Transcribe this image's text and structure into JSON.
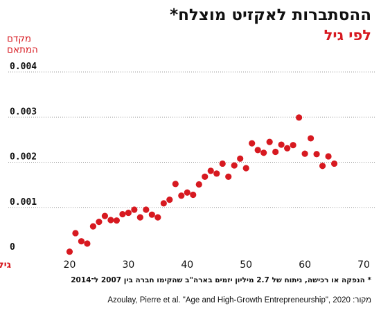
{
  "header": {
    "title": "ההסתברות לאקזיט מוצלח*",
    "subtitle": "לפי גיל"
  },
  "footer": {
    "note": "* הנפקה או רכישה, ניתוח של 2.7 מיליון יזמים בארה\"ב שהקימו חברה בין 2007 ל־2014",
    "source": "מקור: Azoulay, Pierre et al. \"Age and High-Growth Entrepreneurship\", 2020"
  },
  "chart_data": {
    "type": "scatter",
    "ylabel_lines": [
      "מקדם",
      "המתאם"
    ],
    "xlabel": "גיל",
    "xlim": [
      15,
      72
    ],
    "ylim": [
      0,
      0.004
    ],
    "xticks": [
      20,
      30,
      40,
      50,
      60,
      70
    ],
    "yticks": [
      0,
      0.001,
      0.002,
      0.003,
      0.004
    ],
    "ytick_labels": [
      "0",
      "0.001",
      "0.002",
      "0.003",
      "0.004"
    ],
    "grid": "horizontal dotted",
    "colors": {
      "points": "#d71920",
      "text": "#111111",
      "accent": "#d71920",
      "grid": "#999999"
    },
    "points": [
      [
        20,
        2e-05
      ],
      [
        21,
        0.00043
      ],
      [
        22,
        0.00025
      ],
      [
        23,
        0.0002
      ],
      [
        24,
        0.00058
      ],
      [
        25,
        0.00068
      ],
      [
        26,
        0.00081
      ],
      [
        27,
        0.00072
      ],
      [
        28,
        0.00071
      ],
      [
        29,
        0.00085
      ],
      [
        30,
        0.00088
      ],
      [
        31,
        0.00095
      ],
      [
        32,
        0.00078
      ],
      [
        33,
        0.00095
      ],
      [
        34,
        0.00084
      ],
      [
        35,
        0.00078
      ],
      [
        36,
        0.00109
      ],
      [
        37,
        0.00117
      ],
      [
        38,
        0.00152
      ],
      [
        39,
        0.00126
      ],
      [
        40,
        0.00133
      ],
      [
        41,
        0.00128
      ],
      [
        42,
        0.00151
      ],
      [
        43,
        0.00168
      ],
      [
        44,
        0.00181
      ],
      [
        45,
        0.00175
      ],
      [
        46,
        0.00197
      ],
      [
        47,
        0.00168
      ],
      [
        48,
        0.00193
      ],
      [
        49,
        0.00208
      ],
      [
        50,
        0.00187
      ],
      [
        51,
        0.00242
      ],
      [
        52,
        0.00227
      ],
      [
        53,
        0.00221
      ],
      [
        54,
        0.00245
      ],
      [
        55,
        0.00223
      ],
      [
        56,
        0.00239
      ],
      [
        57,
        0.00231
      ],
      [
        58,
        0.00238
      ],
      [
        59,
        0.00299
      ],
      [
        60,
        0.00219
      ],
      [
        61,
        0.00253
      ],
      [
        62,
        0.00218
      ],
      [
        63,
        0.00192
      ],
      [
        64,
        0.00213
      ],
      [
        65,
        0.00197
      ]
    ]
  }
}
